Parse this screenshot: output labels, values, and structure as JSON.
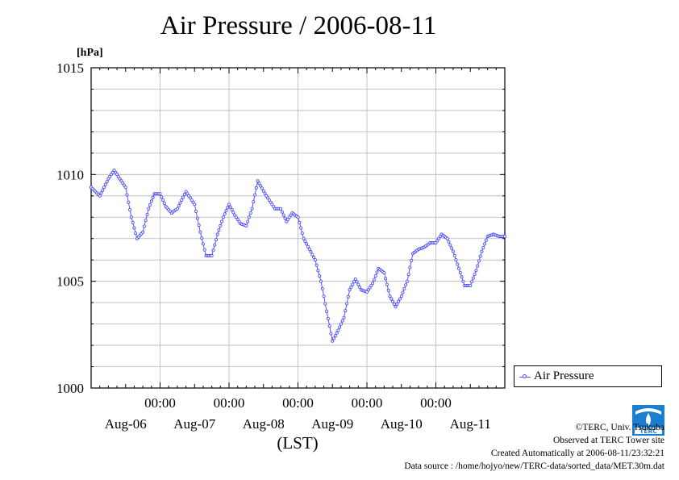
{
  "chart_data": {
    "type": "line",
    "title": "Air Pressure / 2006-08-11",
    "unit_label": "[hPa]",
    "xlabel": "(LST)",
    "ylim": [
      1000,
      1015
    ],
    "y_ticks": [
      "1000",
      "1005",
      "1010",
      "1015"
    ],
    "x_time_labels": [
      "00:00",
      "00:00",
      "00:00",
      "00:00",
      "00:00"
    ],
    "x_date_labels": [
      "Aug-06",
      "Aug-07",
      "Aug-08",
      "Aug-09",
      "Aug-10",
      "Aug-11"
    ],
    "xlim_hours": [
      0,
      144
    ],
    "series": [
      {
        "name": "Air Pressure",
        "color": "#4444ff",
        "x": [
          0,
          3,
          6,
          8,
          12,
          14,
          16,
          18,
          20,
          22,
          24,
          26,
          28,
          30,
          33,
          36,
          38,
          40,
          42,
          44,
          46,
          48,
          50,
          52,
          54,
          56,
          58,
          61,
          64,
          66,
          68,
          70,
          72,
          74,
          76,
          78,
          80,
          82,
          84,
          86,
          88,
          90,
          92,
          94,
          96,
          98,
          100,
          102,
          104,
          106,
          108,
          110,
          112,
          114,
          116,
          118,
          120,
          122,
          124,
          126,
          128,
          130,
          132,
          134,
          136,
          138,
          140,
          142,
          144
        ],
        "y": [
          1009.4,
          1009.0,
          1009.8,
          1010.2,
          1009.4,
          1008.0,
          1007.0,
          1007.3,
          1008.4,
          1009.1,
          1009.1,
          1008.5,
          1008.2,
          1008.4,
          1009.2,
          1008.6,
          1007.3,
          1006.2,
          1006.2,
          1007.2,
          1008.0,
          1008.6,
          1008.1,
          1007.7,
          1007.6,
          1008.4,
          1009.7,
          1009.0,
          1008.4,
          1008.4,
          1007.8,
          1008.2,
          1008.0,
          1007.0,
          1006.5,
          1006.0,
          1005.0,
          1003.6,
          1002.2,
          1002.7,
          1003.3,
          1004.6,
          1005.1,
          1004.6,
          1004.5,
          1004.9,
          1005.6,
          1005.4,
          1004.3,
          1003.8,
          1004.3,
          1005.0,
          1006.3,
          1006.5,
          1006.6,
          1006.8,
          1006.8,
          1007.2,
          1007.0,
          1006.4,
          1005.6,
          1004.8,
          1004.8,
          1005.5,
          1006.4,
          1007.1,
          1007.2,
          1007.1,
          1007.1
        ]
      }
    ]
  },
  "credits": {
    "copyright": "©TERC, Univ. Tsukuba",
    "observed": "Observed at TERC Tower site",
    "created": "Created Automatically at 2006-08-11/23:32:21",
    "source": "Data source : /home/hojyo/new/TERC-data/sorted_data/MET.30m.dat"
  },
  "logo_text": "TERC"
}
